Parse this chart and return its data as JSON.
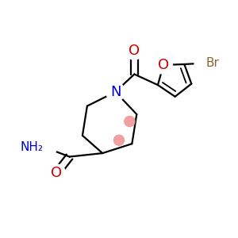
{
  "background": "#ffffff",
  "bond_color": "#000000",
  "bond_width": 1.6,
  "figsize": [
    3.0,
    3.0
  ],
  "dpi": 100,
  "colors": {
    "N": "#0000cc",
    "O": "#cc0000",
    "Br": "#886633",
    "C": "#000000",
    "dot": "#f0a0a0"
  }
}
